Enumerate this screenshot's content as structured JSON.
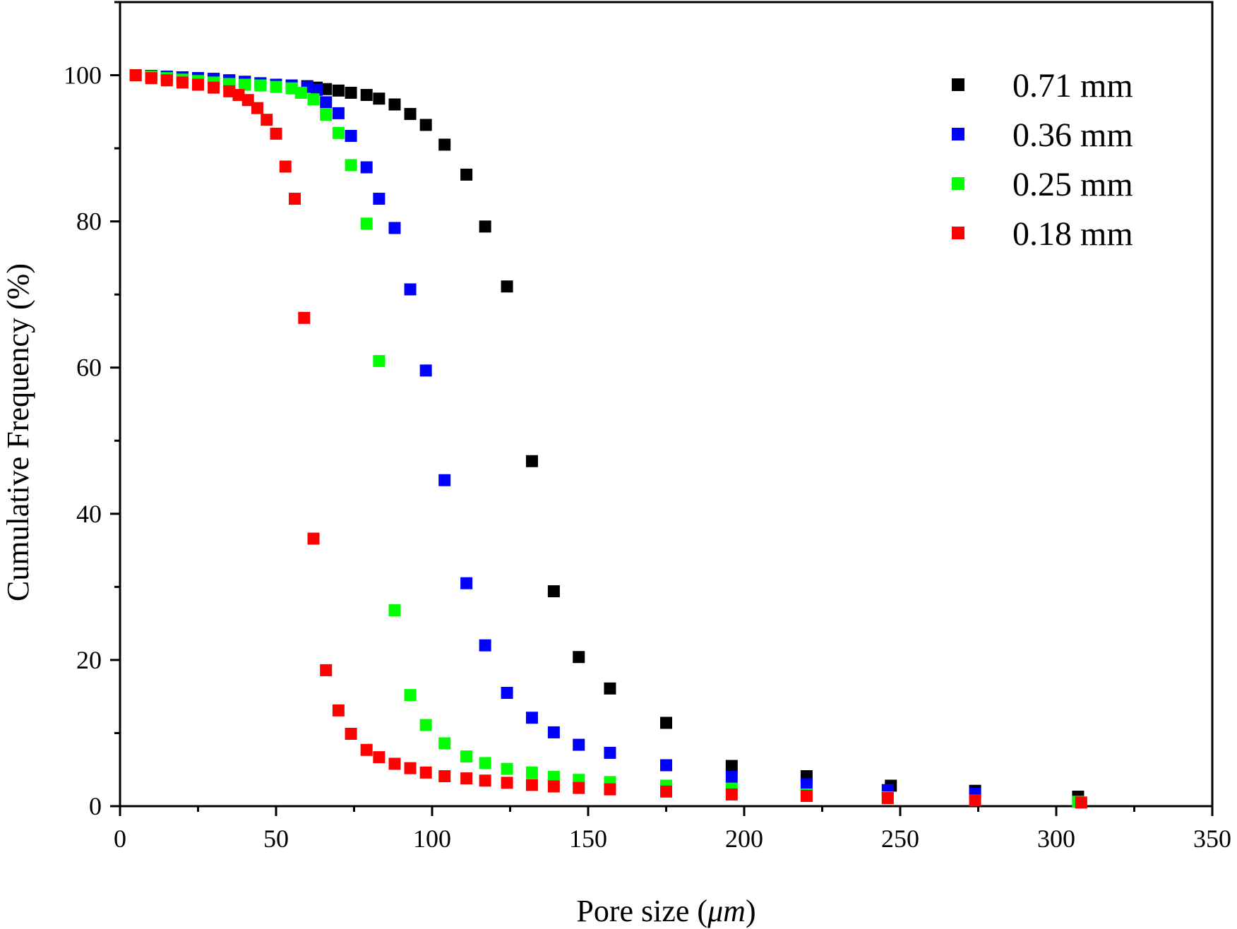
{
  "chart_data": {
    "type": "scatter",
    "title": "",
    "xlabel": "Pore size (",
    "xlabel_unit": "μm",
    "xlabel_close": ")",
    "ylabel": "Cumulative Frequency (%)",
    "xlim": [
      0,
      350
    ],
    "ylim": [
      0,
      110
    ],
    "xticks": [
      0,
      50,
      100,
      150,
      200,
      250,
      300,
      350
    ],
    "yticks": [
      0,
      20,
      40,
      60,
      80,
      100
    ],
    "x_tick_labels": [
      "0",
      "50",
      "100",
      "150",
      "200",
      "250",
      "300",
      "350"
    ],
    "y_tick_labels": [
      "0",
      "20",
      "40",
      "60",
      "80",
      "100"
    ],
    "grid": false,
    "legend_position": "top-right",
    "series": [
      {
        "name": "0.71 mm",
        "color": "#000000",
        "x": [
          5,
          10,
          15,
          20,
          25,
          30,
          35,
          40,
          45,
          50,
          55,
          60,
          63,
          66,
          70,
          74,
          79,
          83,
          88,
          93,
          98,
          104,
          111,
          117,
          124,
          132,
          139,
          147,
          157,
          175,
          196,
          220,
          247,
          274,
          307
        ],
        "y": [
          100,
          99.9,
          99.8,
          99.7,
          99.6,
          99.5,
          99.3,
          99.1,
          98.9,
          98.7,
          98.5,
          98.5,
          98.3,
          98.1,
          97.9,
          97.6,
          97.3,
          96.8,
          96,
          94.7,
          93.2,
          90.5,
          86.4,
          79.3,
          71.1,
          47.2,
          29.4,
          20.4,
          16.1,
          11.4,
          5.5,
          4.1,
          2.8,
          2.1,
          1.3
        ]
      },
      {
        "name": "0.36 mm",
        "color": "#0000ff",
        "x": [
          5,
          10,
          15,
          20,
          25,
          30,
          35,
          40,
          45,
          50,
          55,
          60,
          63,
          66,
          70,
          74,
          79,
          83,
          88,
          93,
          98,
          104,
          111,
          117,
          124,
          132,
          139,
          147,
          157,
          175,
          196,
          220,
          246,
          274,
          307
        ],
        "y": [
          100,
          99.9,
          99.8,
          99.7,
          99.6,
          99.5,
          99.3,
          99.1,
          98.9,
          98.7,
          98.6,
          98.4,
          98,
          96.3,
          94.8,
          91.7,
          87.4,
          83.1,
          79.1,
          70.7,
          59.6,
          44.6,
          30.5,
          22,
          15.5,
          12.1,
          10.1,
          8.4,
          7.3,
          5.6,
          4,
          3,
          2.2,
          1.7,
          0.6
        ]
      },
      {
        "name": "0.25 mm",
        "color": "#00ff00",
        "x": [
          5,
          10,
          15,
          20,
          25,
          30,
          35,
          40,
          45,
          50,
          55,
          58,
          62,
          66,
          70,
          74,
          79,
          83,
          88,
          93,
          98,
          104,
          111,
          117,
          124,
          132,
          139,
          147,
          157,
          175,
          196,
          220,
          246,
          307
        ],
        "y": [
          100,
          99.8,
          99.6,
          99.4,
          99.2,
          99,
          98.8,
          98.7,
          98.6,
          98.4,
          98.2,
          97.6,
          96.7,
          94.6,
          92.1,
          87.7,
          79.7,
          60.9,
          26.8,
          15.2,
          11.1,
          8.6,
          6.8,
          5.9,
          5.1,
          4.6,
          4,
          3.6,
          3.3,
          2.8,
          2.4,
          1.6,
          1.2,
          0.6
        ]
      },
      {
        "name": "0.18 mm",
        "color": "#ff0000",
        "x": [
          5,
          10,
          15,
          20,
          25,
          30,
          35,
          38,
          41,
          44,
          47,
          50,
          53,
          56,
          59,
          62,
          66,
          70,
          74,
          79,
          83,
          88,
          93,
          98,
          104,
          111,
          117,
          124,
          132,
          139,
          147,
          157,
          175,
          196,
          220,
          246,
          274,
          308
        ],
        "y": [
          100,
          99.6,
          99.3,
          99,
          98.7,
          98.3,
          97.8,
          97.3,
          96.6,
          95.5,
          93.9,
          92,
          87.5,
          83.1,
          66.8,
          36.6,
          18.6,
          13.1,
          9.9,
          7.7,
          6.7,
          5.8,
          5.2,
          4.6,
          4.1,
          3.8,
          3.5,
          3.2,
          2.9,
          2.7,
          2.5,
          2.3,
          2,
          1.6,
          1.4,
          1.1,
          0.8,
          0.5
        ]
      }
    ]
  }
}
